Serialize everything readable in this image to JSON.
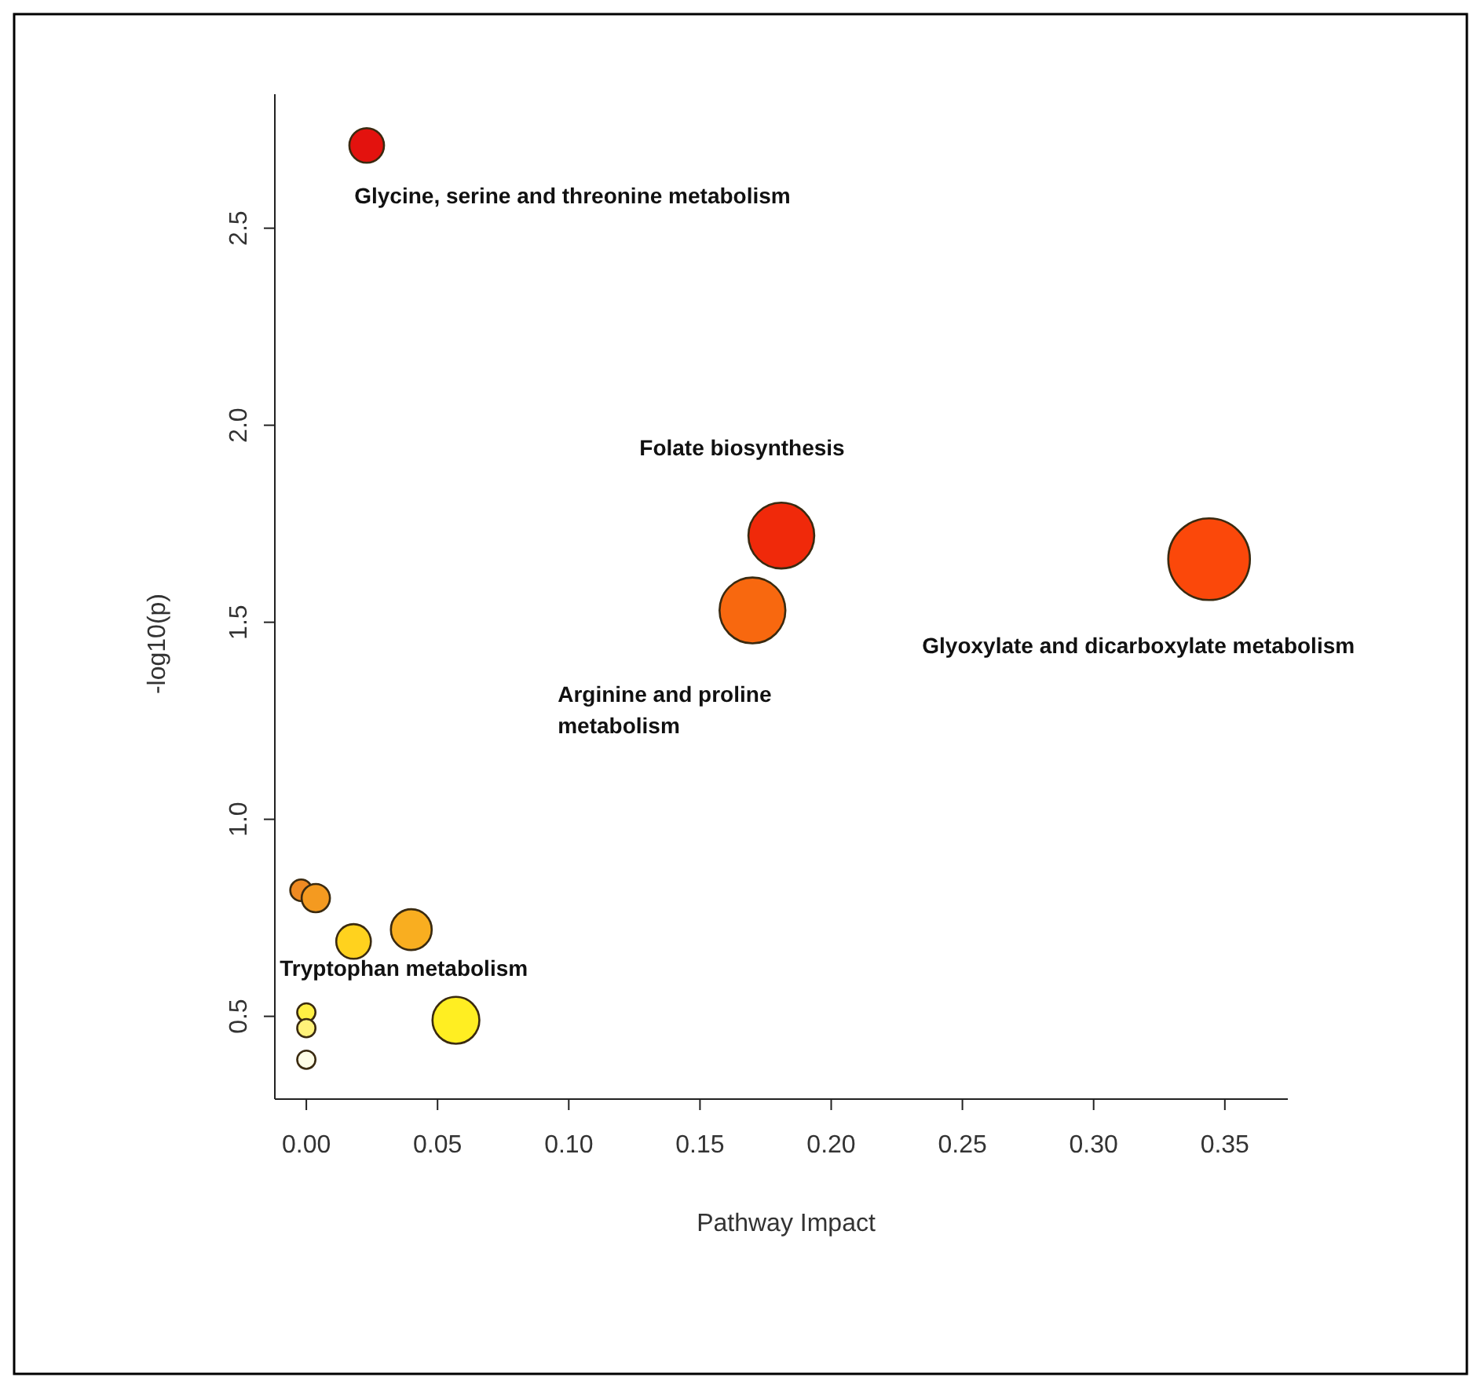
{
  "chart_data": {
    "type": "bubble",
    "xlabel": "Pathway Impact",
    "ylabel": "-log10(p)",
    "x": [
      0.023,
      0.181,
      0.17,
      0.344,
      -0.002,
      0.0036,
      0.018,
      0.04,
      0.057,
      0,
      0,
      0
    ],
    "values": [
      2.71,
      1.72,
      1.53,
      1.66,
      0.82,
      0.8,
      0.69,
      0.72,
      0.49,
      0.51,
      0.47,
      0.39
    ],
    "sizes": [
      0.18,
      0.65,
      0.65,
      1,
      0.07,
      0.12,
      0.18,
      0.25,
      0.33,
      0.05,
      0.05,
      0.05
    ],
    "colors": [
      "#e3120e",
      "#f0290a",
      "#f8680f",
      "#fb480a",
      "#ef8a22",
      "#f49a20",
      "#ffd21e",
      "#f9ae20",
      "#ffee22",
      "#fff044",
      "#fff27a",
      "#fffde6"
    ],
    "xlim": [
      -0.012,
      0.374
    ],
    "ylim": [
      0.29,
      2.84
    ],
    "xticks": [
      {
        "value": 0,
        "label": "0.00"
      },
      {
        "value": 0.05,
        "label": "0.05"
      },
      {
        "value": 0.1,
        "label": "0.10"
      },
      {
        "value": 0.15,
        "label": "0.15"
      },
      {
        "value": 0.2,
        "label": "0.20"
      },
      {
        "value": 0.25,
        "label": "0.25"
      },
      {
        "value": 0.3,
        "label": "0.30"
      },
      {
        "value": 0.35,
        "label": "0.35"
      }
    ],
    "yticks": [
      0.5,
      {
        "value": 1,
        "label": "1.0"
      },
      1.5,
      {
        "value": 2,
        "label": "2.0"
      },
      2.5
    ],
    "grid": false,
    "annotations": [
      "Glycine, serine and threonine metabolism",
      "Folate biosynthesis",
      "Arginine and proline\nmetabolism",
      "Glyoxylate and dicarboxylate metabolism",
      "Tryptophan metabolism"
    ]
  }
}
